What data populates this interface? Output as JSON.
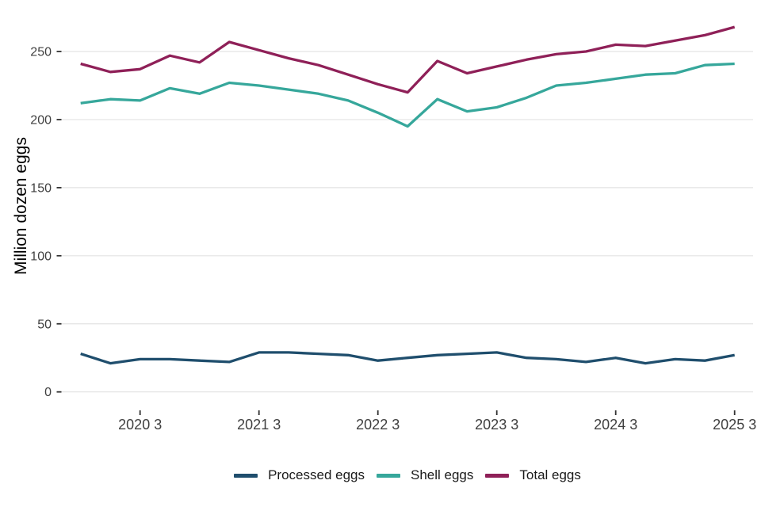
{
  "page": {
    "background": "#ffffff"
  },
  "chart_data": {
    "type": "line",
    "title": "",
    "xlabel": "",
    "ylabel": "Million dozen eggs",
    "x_tick_labels": [
      "2020 3",
      "2021 3",
      "2022 3",
      "2023 3",
      "2024 3",
      "2025 3"
    ],
    "x_tick_indices": [
      2,
      6,
      10,
      14,
      18,
      22
    ],
    "y_ticks": [
      0,
      50,
      100,
      150,
      200,
      250
    ],
    "ylim": [
      0,
      282
    ],
    "grid": "horizontal",
    "legend_position": "bottom",
    "x_unit": "quarter",
    "periods": [
      "2020 Q1",
      "2020 Q2",
      "2020 Q3",
      "2020 Q4",
      "2021 Q1",
      "2021 Q2",
      "2021 Q3",
      "2021 Q4",
      "2022 Q1",
      "2022 Q2",
      "2022 Q3",
      "2022 Q4",
      "2023 Q1",
      "2023 Q2",
      "2023 Q3",
      "2023 Q4",
      "2024 Q1",
      "2024 Q2",
      "2024 Q3",
      "2024 Q4",
      "2025 Q1",
      "2025 Q2",
      "2025 Q3"
    ],
    "series": [
      {
        "name": "Processed eggs",
        "color": "#1f4e6d",
        "values": [
          28,
          21,
          24,
          24,
          23,
          22,
          29,
          29,
          28,
          27,
          23,
          25,
          27,
          28,
          29,
          25,
          24,
          22,
          25,
          21,
          24,
          23,
          27
        ]
      },
      {
        "name": "Shell eggs",
        "color": "#36a79b",
        "values": [
          212,
          215,
          214,
          223,
          219,
          227,
          225,
          222,
          219,
          214,
          205,
          195,
          215,
          206,
          209,
          216,
          225,
          227,
          230,
          233,
          234,
          240,
          241
        ]
      },
      {
        "name": "Total eggs",
        "color": "#8f2058",
        "values": [
          241,
          235,
          237,
          247,
          242,
          257,
          251,
          245,
          240,
          233,
          226,
          220,
          243,
          234,
          239,
          244,
          248,
          250,
          255,
          254,
          258,
          262,
          268
        ]
      }
    ],
    "colors": {
      "grid": "#e3e3e3",
      "tick": "#333333",
      "tick_label": "#404040",
      "axis_title": "#000000",
      "legend_text": "#1a1a1a"
    }
  }
}
